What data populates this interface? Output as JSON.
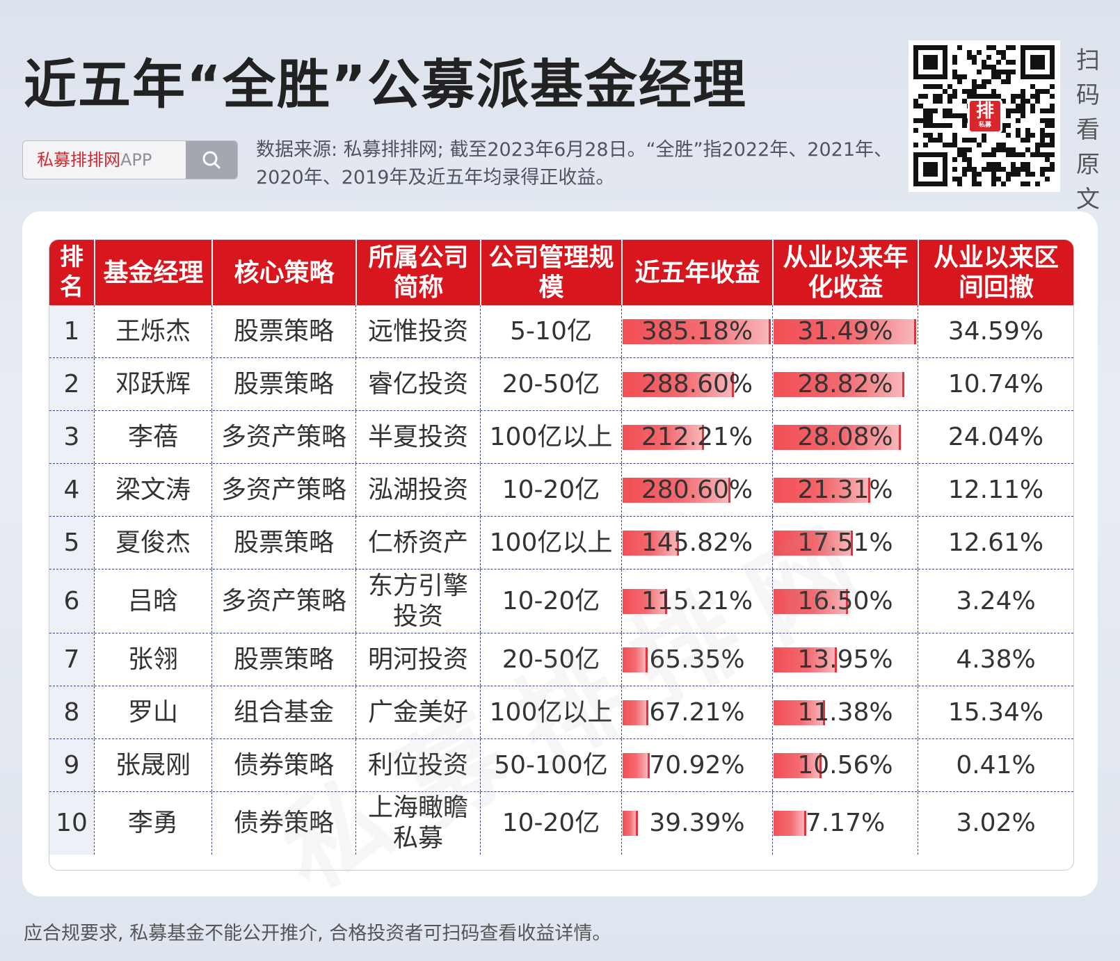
{
  "title": "近五年“全胜”公募派基金经理",
  "search": {
    "brand": "私募排排网",
    "suffix": "APP"
  },
  "source_note": "数据来源: 私募排排网; 截至2023年6月28日。“全胜”指2022年、2021年、2020年、2019年及近五年均录得正收益。",
  "qr": {
    "logo_main": "排",
    "logo_sub": "私募",
    "scan_text": [
      "扫",
      "码",
      "看",
      "原",
      "文"
    ]
  },
  "colors": {
    "accent": "#d8161e",
    "bar": "#f14f55"
  },
  "watermark": "私募排排网",
  "table": {
    "headers": [
      {
        "label": "排名"
      },
      {
        "label": "基金经理"
      },
      {
        "label": "核心策略"
      },
      {
        "label": "所属公司简称"
      },
      {
        "label": "公司管理规模"
      },
      {
        "label": "近五年收益"
      },
      {
        "label": "从业以来年化收益"
      },
      {
        "label": "从业以来区间回撤"
      }
    ],
    "rows": [
      {
        "rank": "1",
        "manager": "王烁杰",
        "strategy": "股票策略",
        "company": "远惟投资",
        "scale": "5-10亿",
        "five_year": "385.18%",
        "five_year_value": 385.18,
        "annual": "31.49%",
        "annual_value": 31.49,
        "drawdown": "34.59%"
      },
      {
        "rank": "2",
        "manager": "邓跃辉",
        "strategy": "股票策略",
        "company": "睿亿投资",
        "scale": "20-50亿",
        "five_year": "288.60%",
        "five_year_value": 288.6,
        "annual": "28.82%",
        "annual_value": 28.82,
        "drawdown": "10.74%"
      },
      {
        "rank": "3",
        "manager": "李蓓",
        "strategy": "多资产策略",
        "company": "半夏投资",
        "scale": "100亿以上",
        "five_year": "212.21%",
        "five_year_value": 212.21,
        "annual": "28.08%",
        "annual_value": 28.08,
        "drawdown": "24.04%"
      },
      {
        "rank": "4",
        "manager": "梁文涛",
        "strategy": "多资产策略",
        "company": "泓湖投资",
        "scale": "10-20亿",
        "five_year": "280.60%",
        "five_year_value": 280.6,
        "annual": "21.31%",
        "annual_value": 21.31,
        "drawdown": "12.11%"
      },
      {
        "rank": "5",
        "manager": "夏俊杰",
        "strategy": "股票策略",
        "company": "仁桥资产",
        "scale": "100亿以上",
        "five_year": "145.82%",
        "five_year_value": 145.82,
        "annual": "17.51%",
        "annual_value": 17.51,
        "drawdown": "12.61%"
      },
      {
        "rank": "6",
        "manager": "吕晗",
        "strategy": "多资产策略",
        "company": "东方引擎投资",
        "scale": "10-20亿",
        "five_year": "115.21%",
        "five_year_value": 115.21,
        "annual": "16.50%",
        "annual_value": 16.5,
        "drawdown": "3.24%"
      },
      {
        "rank": "7",
        "manager": "张翎",
        "strategy": "股票策略",
        "company": "明河投资",
        "scale": "20-50亿",
        "five_year": "65.35%",
        "five_year_value": 65.35,
        "annual": "13.95%",
        "annual_value": 13.95,
        "drawdown": "4.38%"
      },
      {
        "rank": "8",
        "manager": "罗山",
        "strategy": "组合基金",
        "company": "广金美好",
        "scale": "100亿以上",
        "five_year": "67.21%",
        "five_year_value": 67.21,
        "annual": "11.38%",
        "annual_value": 11.38,
        "drawdown": "15.34%"
      },
      {
        "rank": "9",
        "manager": "张晟刚",
        "strategy": "债券策略",
        "company": "利位投资",
        "scale": "50-100亿",
        "five_year": "70.92%",
        "five_year_value": 70.92,
        "annual": "10.56%",
        "annual_value": 10.56,
        "drawdown": "0.41%"
      },
      {
        "rank": "10",
        "manager": "李勇",
        "strategy": "债券策略",
        "company": "上海瞰瞻私募",
        "scale": "10-20亿",
        "five_year": "39.39%",
        "five_year_value": 39.39,
        "annual": "7.17%",
        "annual_value": 7.17,
        "drawdown": "3.02%"
      }
    ]
  },
  "footer": "应合规要求, 私募基金不能公开推介, 合格投资者可扫码查看收益详情。"
}
